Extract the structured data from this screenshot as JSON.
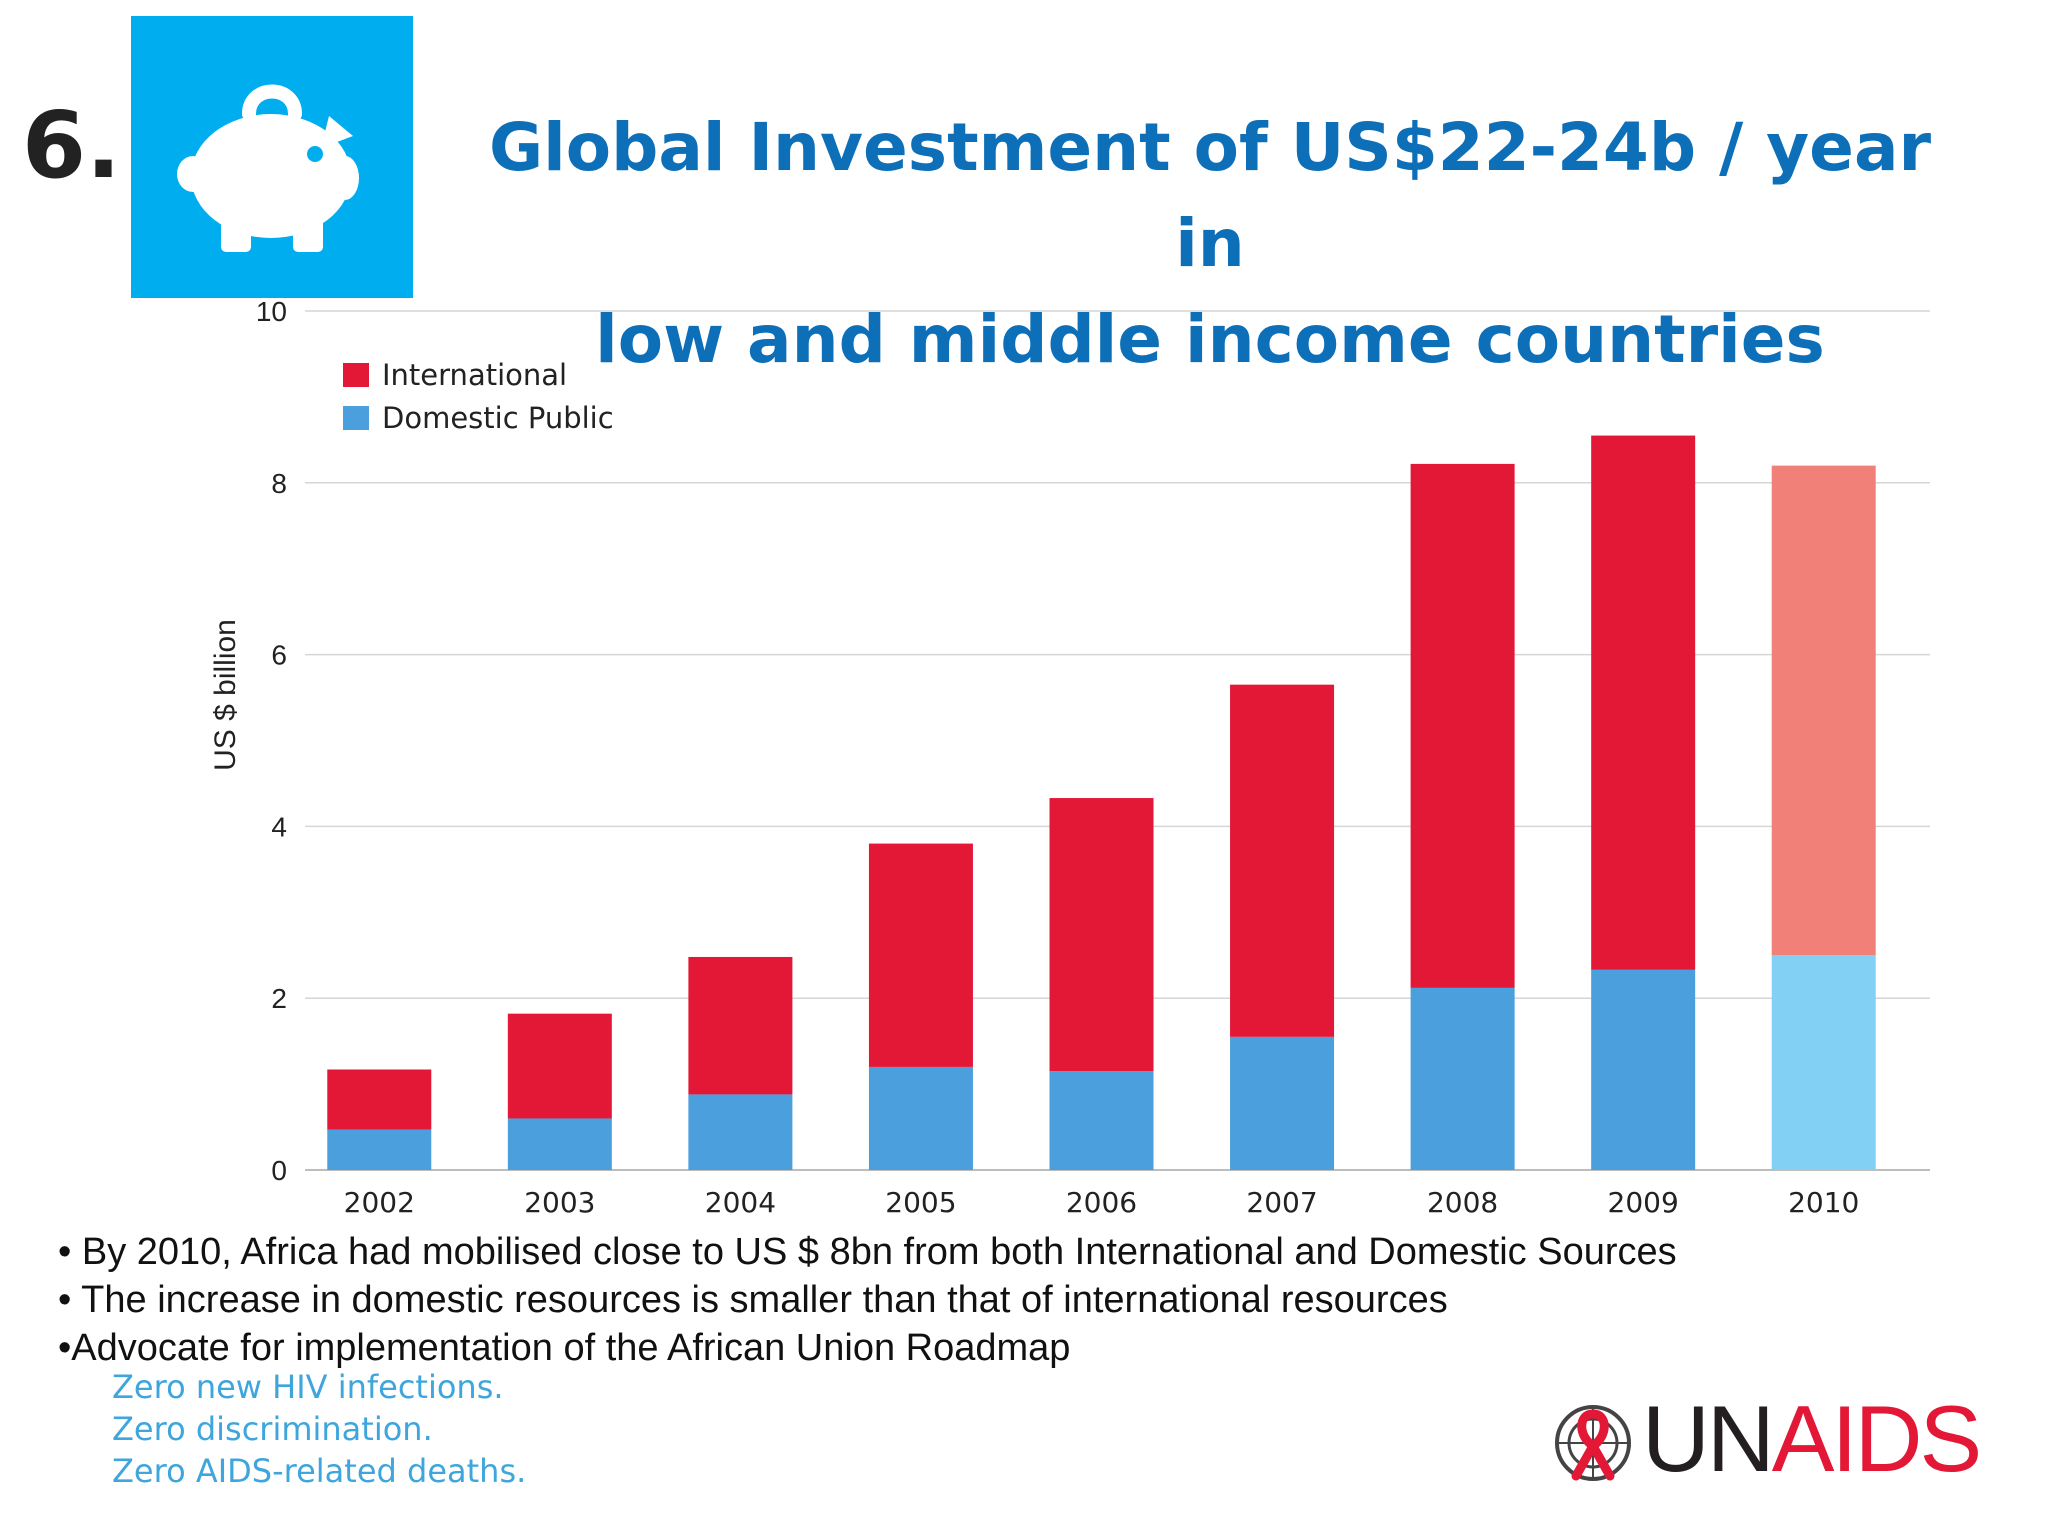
{
  "slide": {
    "number": "6.",
    "title_line1": "Global Investment of  US$22-24b / year in",
    "title_line2": "low and middle income countries",
    "icon": "piggy-bank-icon",
    "icon_tile_color": "#00aeef"
  },
  "chart_data": {
    "type": "bar",
    "stacked": true,
    "title": "",
    "xlabel": "",
    "ylabel": "US $ billion",
    "ylim": [
      0,
      10
    ],
    "yticks": [
      "0",
      "2",
      "4",
      "6",
      "8",
      "10"
    ],
    "categories": [
      "2002",
      "2003",
      "2004",
      "2005",
      "2006",
      "2007",
      "2008",
      "2009",
      "2010"
    ],
    "series": [
      {
        "name": "Domestic Public",
        "color": "#4a9fdc",
        "highlight_color": "#82d1f5",
        "values": [
          0.47,
          0.6,
          0.88,
          1.2,
          1.15,
          1.55,
          2.12,
          2.33,
          2.5
        ]
      },
      {
        "name": "International",
        "color": "#e31837",
        "highlight_color": "#f08078",
        "values": [
          0.7,
          1.22,
          1.6,
          2.6,
          3.18,
          4.1,
          6.1,
          6.22,
          5.7
        ]
      }
    ],
    "highlight_category": "2010",
    "legend_position": "top-left",
    "grid": true
  },
  "bullets": [
    "• By 2010, Africa had mobilised close to US $ 8bn from both International and Domestic Sources",
    "• The increase in domestic resources is smaller than that of international resources",
    "•Advocate for implementation of the African Union Roadmap"
  ],
  "tagline": [
    "Zero new HIV infections.",
    "Zero discrimination.",
    "Zero AIDS-related deaths."
  ],
  "logo": {
    "part1": "UN",
    "part2": "AIDS",
    "emblem": "un-emblem-icon"
  }
}
